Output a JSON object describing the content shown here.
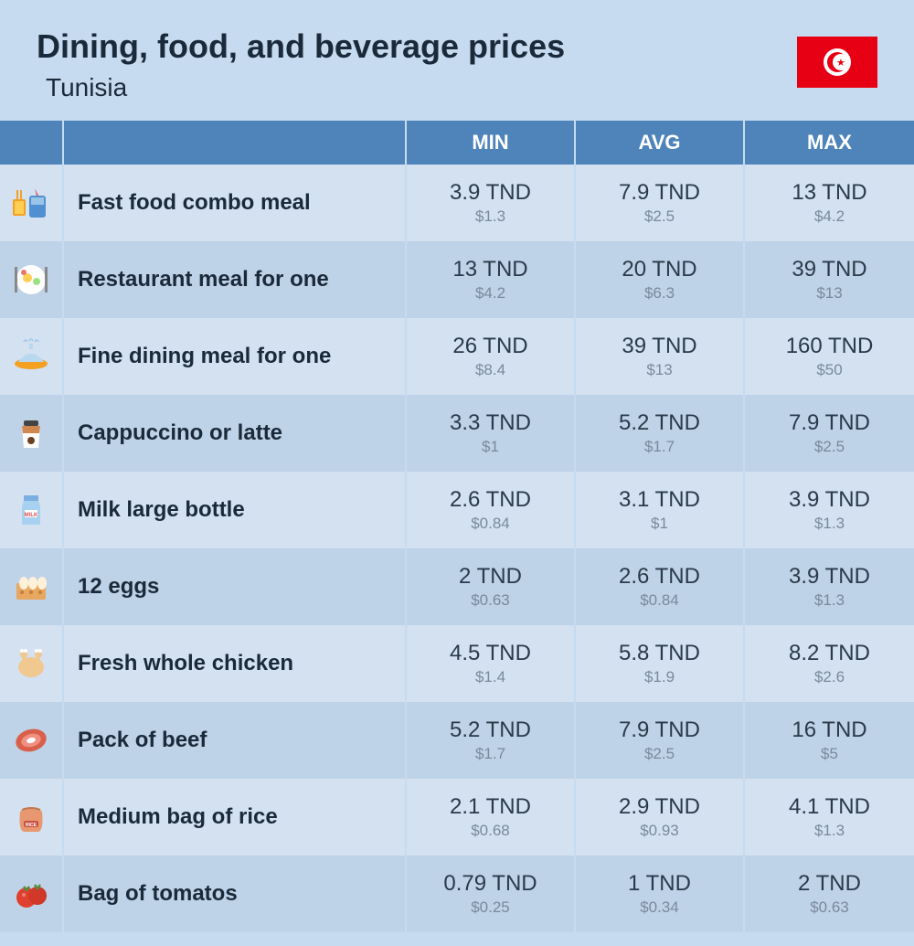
{
  "header": {
    "title": "Dining, food, and beverage prices",
    "subtitle": "Tunisia"
  },
  "flag": {
    "bg_color": "#e70013",
    "circle_color": "#ffffff"
  },
  "columns": {
    "min": "MIN",
    "avg": "AVG",
    "max": "MAX"
  },
  "colors": {
    "page_bg": "#c6dbf0",
    "header_bg": "#4f84bb",
    "row_light": "#d3e1f1",
    "row_dark": "#bed2e8",
    "text_main": "#1a2a3a",
    "text_price": "#2a3a4a",
    "text_sub": "#7a8a9a"
  },
  "rows": [
    {
      "icon": "fast-food",
      "name": "Fast food combo meal",
      "min": {
        "p": "3.9 TND",
        "s": "$1.3"
      },
      "avg": {
        "p": "7.9 TND",
        "s": "$2.5"
      },
      "max": {
        "p": "13 TND",
        "s": "$4.2"
      }
    },
    {
      "icon": "restaurant",
      "name": "Restaurant meal for one",
      "min": {
        "p": "13 TND",
        "s": "$4.2"
      },
      "avg": {
        "p": "20 TND",
        "s": "$6.3"
      },
      "max": {
        "p": "39 TND",
        "s": "$13"
      }
    },
    {
      "icon": "fine-dining",
      "name": "Fine dining meal for one",
      "min": {
        "p": "26 TND",
        "s": "$8.4"
      },
      "avg": {
        "p": "39 TND",
        "s": "$13"
      },
      "max": {
        "p": "160 TND",
        "s": "$50"
      }
    },
    {
      "icon": "coffee",
      "name": "Cappuccino or latte",
      "min": {
        "p": "3.3 TND",
        "s": "$1"
      },
      "avg": {
        "p": "5.2 TND",
        "s": "$1.7"
      },
      "max": {
        "p": "7.9 TND",
        "s": "$2.5"
      }
    },
    {
      "icon": "milk",
      "name": "Milk large bottle",
      "min": {
        "p": "2.6 TND",
        "s": "$0.84"
      },
      "avg": {
        "p": "3.1 TND",
        "s": "$1"
      },
      "max": {
        "p": "3.9 TND",
        "s": "$1.3"
      }
    },
    {
      "icon": "eggs",
      "name": "12 eggs",
      "min": {
        "p": "2 TND",
        "s": "$0.63"
      },
      "avg": {
        "p": "2.6 TND",
        "s": "$0.84"
      },
      "max": {
        "p": "3.9 TND",
        "s": "$1.3"
      }
    },
    {
      "icon": "chicken",
      "name": "Fresh whole chicken",
      "min": {
        "p": "4.5 TND",
        "s": "$1.4"
      },
      "avg": {
        "p": "5.8 TND",
        "s": "$1.9"
      },
      "max": {
        "p": "8.2 TND",
        "s": "$2.6"
      }
    },
    {
      "icon": "beef",
      "name": "Pack of beef",
      "min": {
        "p": "5.2 TND",
        "s": "$1.7"
      },
      "avg": {
        "p": "7.9 TND",
        "s": "$2.5"
      },
      "max": {
        "p": "16 TND",
        "s": "$5"
      }
    },
    {
      "icon": "rice",
      "name": "Medium bag of rice",
      "min": {
        "p": "2.1 TND",
        "s": "$0.68"
      },
      "avg": {
        "p": "2.9 TND",
        "s": "$0.93"
      },
      "max": {
        "p": "4.1 TND",
        "s": "$1.3"
      }
    },
    {
      "icon": "tomato",
      "name": "Bag of tomatos",
      "min": {
        "p": "0.79 TND",
        "s": "$0.25"
      },
      "avg": {
        "p": "1 TND",
        "s": "$0.34"
      },
      "max": {
        "p": "2 TND",
        "s": "$0.63"
      }
    }
  ]
}
